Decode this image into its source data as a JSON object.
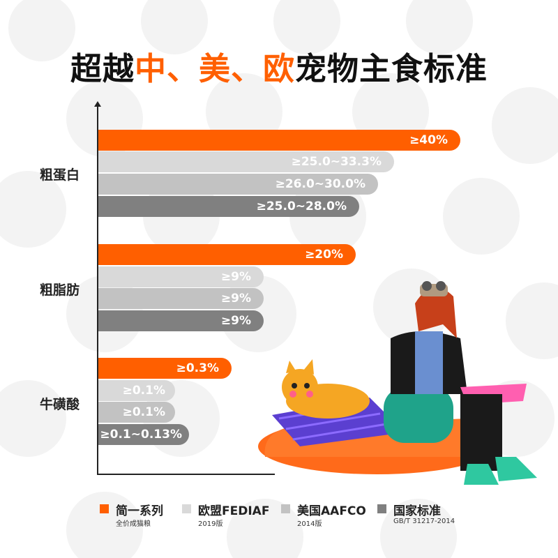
{
  "title": {
    "prefix": "超越",
    "highlight": "中、美、欧",
    "suffix": "宠物主食标准"
  },
  "colors": {
    "series": [
      "#ff5f00",
      "#d9d9d9",
      "#c2c2c2",
      "#808080"
    ]
  },
  "chart_data": {
    "type": "bar",
    "orientation": "horizontal",
    "categories": [
      "粗蛋白",
      "粗脂肪",
      "牛磺酸"
    ],
    "series": [
      {
        "name": "简一系列",
        "note": "全价成猫粮",
        "labels": [
          "≥40%",
          "≥20%",
          "≥0.3%"
        ]
      },
      {
        "name": "欧盟FEDIAF",
        "note": "2019版",
        "labels": [
          "≥25.0~33.3%",
          "≥9%",
          "≥0.1%"
        ]
      },
      {
        "name": "美国AAFCO",
        "note": "2014版",
        "labels": [
          "≥26.0~30.0%",
          "≥9%",
          "≥0.1%"
        ]
      },
      {
        "name": "国家标准",
        "note": "GB/T 31217-2014",
        "labels": [
          "≥25.0~28.0%",
          "≥9%",
          "≥0.1~0.13%"
        ]
      }
    ],
    "legend": "bottom",
    "grid": false
  }
}
